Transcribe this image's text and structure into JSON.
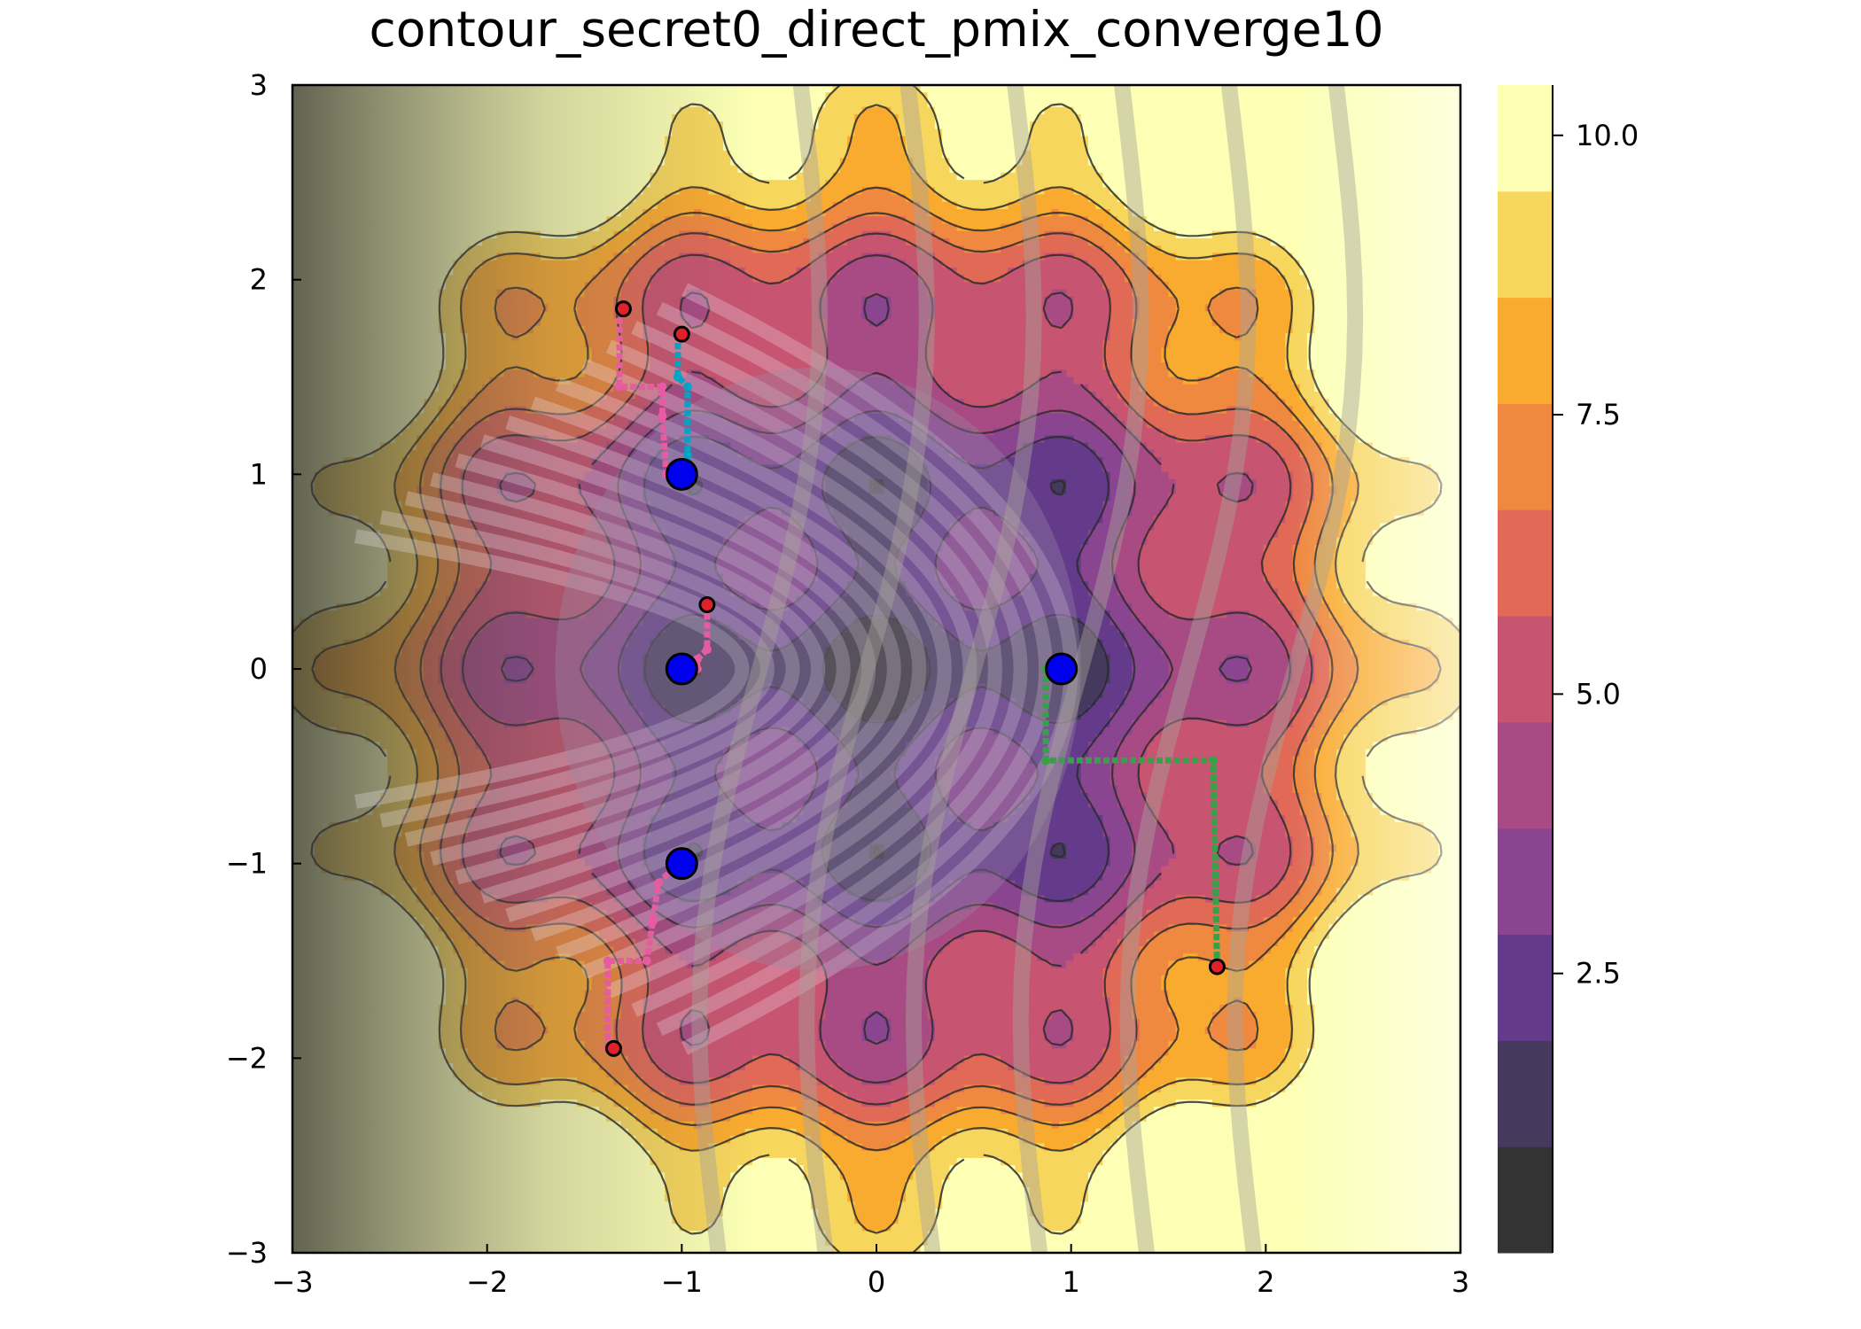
{
  "chart_data": {
    "type": "contour",
    "title": "contour_secret0_direct_pmix_converge10",
    "xlabel": "",
    "ylabel": "",
    "xlim": [
      -3,
      3
    ],
    "ylim": [
      -3,
      3
    ],
    "x_ticks": [
      -3,
      -2,
      -1,
      0,
      1,
      2,
      3
    ],
    "x_tick_labels": [
      "−3",
      "−2",
      "−1",
      "0",
      "1",
      "2",
      "3"
    ],
    "y_ticks": [
      -3,
      -2,
      -1,
      0,
      1,
      2,
      3
    ],
    "y_tick_labels": [
      "−3",
      "−2",
      "−1",
      "0",
      "1",
      "2",
      "3"
    ],
    "grid": false,
    "legend": "none",
    "colorbar": {
      "ticks": [
        2.5,
        5.0,
        7.5,
        10.0
      ],
      "tick_labels": [
        "2.5",
        "5.0",
        "7.5",
        "10.0"
      ],
      "levels": [
        0.0,
        0.95,
        1.9,
        2.85,
        3.8,
        4.75,
        5.7,
        6.65,
        7.6,
        8.55,
        9.5,
        10.45
      ],
      "colors": [
        "#333333",
        "#453a5e",
        "#643a8a",
        "#8a4591",
        "#a84a83",
        "#c75470",
        "#e16a57",
        "#ee893f",
        "#f9ab30",
        "#f7d65d",
        "#fcffb4"
      ]
    },
    "surface": {
      "function": "x^2 + y^2 + 1.5*sin(pi*x)^2 + 1.5*sin(pi*y)^2 (clamped to colorbar range)",
      "overlay": "translucent grey parabolic band along x = 1 - (0.6*y)^2"
    },
    "minima": [
      {
        "x": -1.0,
        "y": 1.0
      },
      {
        "x": -1.0,
        "y": 0.0
      },
      {
        "x": -1.0,
        "y": -1.0
      },
      {
        "x": 0.95,
        "y": 0.0
      }
    ],
    "starts": [
      {
        "x": -1.3,
        "y": 1.85
      },
      {
        "x": -1.0,
        "y": 1.72
      },
      {
        "x": -0.87,
        "y": 0.33
      },
      {
        "x": -1.35,
        "y": -1.95
      },
      {
        "x": 1.75,
        "y": -1.53
      }
    ],
    "paths": [
      {
        "color": "#e75ba2",
        "points": [
          [
            -1.32,
            1.85
          ],
          [
            -1.32,
            1.45
          ],
          [
            -1.1,
            1.45
          ],
          [
            -1.1,
            1.3
          ],
          [
            -1.08,
            1.0
          ],
          [
            -1.05,
            0.98
          ]
        ]
      },
      {
        "color": "#00a4c6",
        "points": [
          [
            -1.02,
            1.72
          ],
          [
            -1.02,
            1.5
          ],
          [
            -0.97,
            1.45
          ],
          [
            -0.97,
            1.1
          ],
          [
            -0.97,
            0.98
          ]
        ]
      },
      {
        "color": "#e75ba2",
        "points": [
          [
            -0.87,
            0.33
          ],
          [
            -0.87,
            0.1
          ],
          [
            -0.92,
            0.05
          ],
          [
            -0.92,
            0.0
          ],
          [
            -0.97,
            0.0
          ]
        ]
      },
      {
        "color": "#e75ba2",
        "points": [
          [
            -1.38,
            -1.95
          ],
          [
            -1.38,
            -1.5
          ],
          [
            -1.18,
            -1.5
          ],
          [
            -1.15,
            -1.3
          ],
          [
            -1.12,
            -1.1
          ],
          [
            -1.05,
            -1.03
          ],
          [
            -1.0,
            -0.98
          ]
        ]
      },
      {
        "color": "#38a049",
        "points": [
          [
            1.75,
            -1.53
          ],
          [
            1.73,
            -0.47
          ],
          [
            0.87,
            -0.47
          ],
          [
            0.87,
            0.0
          ],
          [
            0.93,
            0.0
          ]
        ]
      }
    ]
  }
}
